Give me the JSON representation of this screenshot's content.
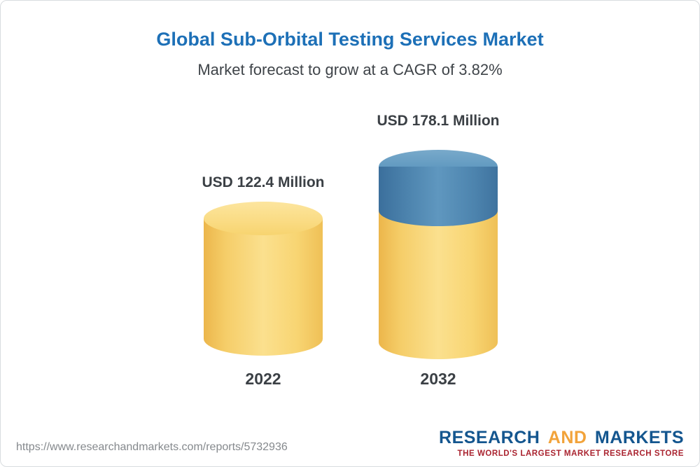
{
  "chart": {
    "title": "Global Sub-Orbital Testing Services Market",
    "subtitle": "Market forecast to grow at a CAGR of 3.82%",
    "bars": [
      {
        "category": "2022",
        "label": "USD 122.4 Million",
        "value": 122.4
      },
      {
        "category": "2032",
        "label": "USD 178.1 Million",
        "value": 178.1
      }
    ]
  },
  "chart_data": {
    "type": "bar",
    "style": "3d-cylinder",
    "categories": [
      "2022",
      "2032"
    ],
    "values": [
      122.4,
      178.1
    ],
    "unit": "USD Million",
    "title": "Global Sub-Orbital Testing Services Market",
    "subtitle": "Market forecast to grow at a CAGR of 3.82%",
    "cagr_percent": 3.82,
    "annotations": [
      "USD 122.4 Million",
      "USD 178.1 Million"
    ],
    "xlabel": "",
    "ylabel": "",
    "legend": false,
    "axes_visible": false,
    "colors": {
      "base_segment": "#f8d573",
      "growth_segment": "#4d84ae",
      "title_text": "#1d70b7",
      "label_text": "#3b4045"
    }
  },
  "footer": {
    "url": "https://www.researchandmarkets.com/reports/5732936",
    "logo": {
      "part1": "RESEARCH",
      "part2": "AND",
      "part3": "MARKETS",
      "tagline": "THE WORLD'S LARGEST MARKET RESEARCH STORE",
      "brand_blue": "#14568f",
      "brand_yellow": "#f2a33a",
      "tagline_color": "#aa2430"
    }
  }
}
